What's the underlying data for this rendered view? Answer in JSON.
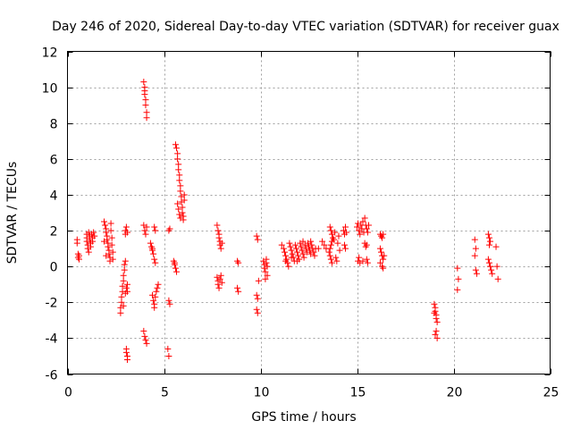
{
  "chart_data": {
    "type": "scatter",
    "title": "Day 246 of 2020, Sidereal Day-to-day VTEC variation (SDTVAR) for receiver guax",
    "xlabel": "GPS time / hours",
    "ylabel": "SDTVAR / TECUs",
    "xlim": [
      0,
      25
    ],
    "ylim": [
      -6,
      12
    ],
    "xticks": [
      0,
      5,
      10,
      15,
      20,
      25
    ],
    "yticks": [
      -6,
      -4,
      -2,
      0,
      2,
      4,
      6,
      8,
      10,
      12
    ],
    "grid": true,
    "marker": "+",
    "series": [
      {
        "name": "SDTVAR",
        "color": "#ff0000",
        "points": [
          [
            0.5,
            1.5
          ],
          [
            0.5,
            1.3
          ],
          [
            0.55,
            0.7
          ],
          [
            0.55,
            0.5
          ],
          [
            0.6,
            0.6
          ],
          [
            0.6,
            0.4
          ],
          [
            1.0,
            1.8
          ],
          [
            1.0,
            1.6
          ],
          [
            1.0,
            1.4
          ],
          [
            1.05,
            1.2
          ],
          [
            1.05,
            1.0
          ],
          [
            1.1,
            0.8
          ],
          [
            1.1,
            1.9
          ],
          [
            1.15,
            1.7
          ],
          [
            1.15,
            1.5
          ],
          [
            1.2,
            1.3
          ],
          [
            1.2,
            1.1
          ],
          [
            1.25,
            1.8
          ],
          [
            1.3,
            1.6
          ],
          [
            1.3,
            1.4
          ],
          [
            1.35,
            1.9
          ],
          [
            1.4,
            1.7
          ],
          [
            1.9,
            2.5
          ],
          [
            1.95,
            2.3
          ],
          [
            2.0,
            2.1
          ],
          [
            2.0,
            1.9
          ],
          [
            2.05,
            1.7
          ],
          [
            2.05,
            1.5
          ],
          [
            2.1,
            1.3
          ],
          [
            2.1,
            1.1
          ],
          [
            2.15,
            0.9
          ],
          [
            2.15,
            0.7
          ],
          [
            2.2,
            0.5
          ],
          [
            2.2,
            0.3
          ],
          [
            2.25,
            2.4
          ],
          [
            2.25,
            2.0
          ],
          [
            2.3,
            1.6
          ],
          [
            2.3,
            1.2
          ],
          [
            2.35,
            0.8
          ],
          [
            2.35,
            0.4
          ],
          [
            1.9,
            1.4
          ],
          [
            2.0,
            0.6
          ],
          [
            2.75,
            -2.6
          ],
          [
            2.75,
            -2.3
          ],
          [
            2.8,
            -2.0
          ],
          [
            2.8,
            -1.7
          ],
          [
            2.85,
            -1.4
          ],
          [
            2.85,
            -1.1
          ],
          [
            2.9,
            -0.8
          ],
          [
            2.9,
            -0.5
          ],
          [
            2.95,
            -0.2
          ],
          [
            2.95,
            0.1
          ],
          [
            3.0,
            0.3
          ],
          [
            2.9,
            -2.2
          ],
          [
            3.0,
            -1.5
          ],
          [
            3.05,
            -1.2
          ],
          [
            3.1,
            -1.4
          ],
          [
            3.1,
            -1.0
          ],
          [
            3.0,
            1.8
          ],
          [
            3.0,
            2.0
          ],
          [
            3.05,
            2.2
          ],
          [
            3.1,
            1.9
          ],
          [
            3.05,
            -4.6
          ],
          [
            3.05,
            -4.8
          ],
          [
            3.1,
            -5.0
          ],
          [
            3.1,
            -5.2
          ],
          [
            3.95,
            10.3
          ],
          [
            4.0,
            10.0
          ],
          [
            4.0,
            9.6
          ],
          [
            4.05,
            9.3
          ],
          [
            4.05,
            9.0
          ],
          [
            4.1,
            8.6
          ],
          [
            4.1,
            8.3
          ],
          [
            4.0,
            9.8
          ],
          [
            3.95,
            2.3
          ],
          [
            4.0,
            2.0
          ],
          [
            4.05,
            1.8
          ],
          [
            4.1,
            2.2
          ],
          [
            3.95,
            -3.6
          ],
          [
            4.0,
            -3.9
          ],
          [
            4.05,
            -4.1
          ],
          [
            4.1,
            -4.3
          ],
          [
            4.3,
            1.3
          ],
          [
            4.35,
            1.1
          ],
          [
            4.4,
            0.9
          ],
          [
            4.45,
            0.7
          ],
          [
            4.5,
            0.4
          ],
          [
            4.4,
            1.0
          ],
          [
            4.55,
            0.2
          ],
          [
            4.5,
            2.2
          ],
          [
            4.55,
            2.0
          ],
          [
            4.4,
            -1.6
          ],
          [
            4.45,
            -1.9
          ],
          [
            4.5,
            -2.1
          ],
          [
            4.5,
            -2.3
          ],
          [
            4.55,
            -1.7
          ],
          [
            4.6,
            -1.4
          ],
          [
            4.65,
            -1.2
          ],
          [
            4.7,
            -1.0
          ],
          [
            5.25,
            2.0
          ],
          [
            5.3,
            2.1
          ],
          [
            5.25,
            -1.9
          ],
          [
            5.3,
            -2.1
          ],
          [
            5.2,
            -4.6
          ],
          [
            5.25,
            -5.0
          ],
          [
            5.5,
            0.3
          ],
          [
            5.55,
            0.1
          ],
          [
            5.6,
            -0.1
          ],
          [
            5.65,
            -0.3
          ],
          [
            5.55,
            0.2
          ],
          [
            5.6,
            6.8
          ],
          [
            5.65,
            6.6
          ],
          [
            5.7,
            6.3
          ],
          [
            5.7,
            6.0
          ],
          [
            5.75,
            5.7
          ],
          [
            5.75,
            5.4
          ],
          [
            5.8,
            5.1
          ],
          [
            5.8,
            4.8
          ],
          [
            5.85,
            4.5
          ],
          [
            5.85,
            4.2
          ],
          [
            5.9,
            3.9
          ],
          [
            5.9,
            3.6
          ],
          [
            5.95,
            3.3
          ],
          [
            5.95,
            3.0
          ],
          [
            6.0,
            2.8
          ],
          [
            6.0,
            2.6
          ],
          [
            5.7,
            3.5
          ],
          [
            5.75,
            3.2
          ],
          [
            5.8,
            2.9
          ],
          [
            5.85,
            2.7
          ],
          [
            6.05,
            4.0
          ],
          [
            6.05,
            3.7
          ],
          [
            7.75,
            2.3
          ],
          [
            7.8,
            2.0
          ],
          [
            7.85,
            1.8
          ],
          [
            7.85,
            1.6
          ],
          [
            7.9,
            1.4
          ],
          [
            7.9,
            1.2
          ],
          [
            7.95,
            1.0
          ],
          [
            8.0,
            1.3
          ],
          [
            7.75,
            -0.6
          ],
          [
            7.8,
            -0.8
          ],
          [
            7.8,
            -1.0
          ],
          [
            7.85,
            -1.2
          ],
          [
            7.9,
            -0.7
          ],
          [
            7.95,
            -0.5
          ],
          [
            8.0,
            -0.9
          ],
          [
            8.8,
            0.3
          ],
          [
            8.85,
            0.2
          ],
          [
            8.8,
            -1.2
          ],
          [
            8.85,
            -1.4
          ],
          [
            9.8,
            1.7
          ],
          [
            9.85,
            1.5
          ],
          [
            9.8,
            -1.6
          ],
          [
            9.85,
            -1.8
          ],
          [
            9.8,
            -2.4
          ],
          [
            9.85,
            -2.6
          ],
          [
            9.9,
            -0.8
          ],
          [
            10.15,
            0.3
          ],
          [
            10.2,
            0.1
          ],
          [
            10.2,
            -0.1
          ],
          [
            10.25,
            -0.3
          ],
          [
            10.3,
            0.4
          ],
          [
            10.3,
            0.2
          ],
          [
            10.35,
            0.0
          ],
          [
            10.35,
            -0.5
          ],
          [
            10.25,
            -0.7
          ],
          [
            11.1,
            1.2
          ],
          [
            11.2,
            1.0
          ],
          [
            11.25,
            0.8
          ],
          [
            11.3,
            0.6
          ],
          [
            11.35,
            0.4
          ],
          [
            11.4,
            0.2
          ],
          [
            11.45,
            0.0
          ],
          [
            11.5,
            1.3
          ],
          [
            11.55,
            1.1
          ],
          [
            11.6,
            0.9
          ],
          [
            11.65,
            0.7
          ],
          [
            11.7,
            0.5
          ],
          [
            11.75,
            0.3
          ],
          [
            11.8,
            1.2
          ],
          [
            11.85,
            1.0
          ],
          [
            11.9,
            0.8
          ],
          [
            11.95,
            0.6
          ],
          [
            12.0,
            0.4
          ],
          [
            12.05,
            1.3
          ],
          [
            12.1,
            1.1
          ],
          [
            12.15,
            0.9
          ],
          [
            12.2,
            0.7
          ],
          [
            12.25,
            0.5
          ],
          [
            12.3,
            1.2
          ],
          [
            12.35,
            1.0
          ],
          [
            12.4,
            0.8
          ],
          [
            12.45,
            1.3
          ],
          [
            12.5,
            1.1
          ],
          [
            12.55,
            0.9
          ],
          [
            12.6,
            0.7
          ],
          [
            12.65,
            1.2
          ],
          [
            12.7,
            1.0
          ],
          [
            12.75,
            0.8
          ],
          [
            12.8,
            0.6
          ],
          [
            12.85,
            1.0
          ],
          [
            13.0,
            1.0
          ],
          [
            13.2,
            1.4
          ],
          [
            13.3,
            1.2
          ],
          [
            13.4,
            1.0
          ],
          [
            11.3,
            0.3
          ],
          [
            11.6,
            0.5
          ],
          [
            11.9,
            0.3
          ],
          [
            12.2,
            1.4
          ],
          [
            12.6,
            1.4
          ],
          [
            13.6,
            2.2
          ],
          [
            13.65,
            2.0
          ],
          [
            13.7,
            1.8
          ],
          [
            13.75,
            1.6
          ],
          [
            13.7,
            1.4
          ],
          [
            13.65,
            1.2
          ],
          [
            13.6,
            1.0
          ],
          [
            13.55,
            0.8
          ],
          [
            13.6,
            0.6
          ],
          [
            13.65,
            0.4
          ],
          [
            13.7,
            0.2
          ],
          [
            13.8,
            1.5
          ],
          [
            13.85,
            1.9
          ],
          [
            13.9,
            0.5
          ],
          [
            13.95,
            0.3
          ],
          [
            14.0,
            1.3
          ],
          [
            14.05,
            1.7
          ],
          [
            14.1,
            0.9
          ],
          [
            14.3,
            2.0
          ],
          [
            14.35,
            1.8
          ],
          [
            14.4,
            2.2
          ],
          [
            14.45,
            1.9
          ],
          [
            14.35,
            1.2
          ],
          [
            14.4,
            1.0
          ],
          [
            15.0,
            2.2
          ],
          [
            15.05,
            2.4
          ],
          [
            15.1,
            2.0
          ],
          [
            15.15,
            1.8
          ],
          [
            15.2,
            2.3
          ],
          [
            15.25,
            2.1
          ],
          [
            15.3,
            2.5
          ],
          [
            15.35,
            1.9
          ],
          [
            15.4,
            2.7
          ],
          [
            15.45,
            2.3
          ],
          [
            15.5,
            2.1
          ],
          [
            15.55,
            1.9
          ],
          [
            15.6,
            2.3
          ],
          [
            15.05,
            0.3
          ],
          [
            15.1,
            0.5
          ],
          [
            15.15,
            0.2
          ],
          [
            15.3,
            0.3
          ],
          [
            15.5,
            0.4
          ],
          [
            15.55,
            0.2
          ],
          [
            15.4,
            1.3
          ],
          [
            15.45,
            1.1
          ],
          [
            15.5,
            1.2
          ],
          [
            16.2,
            1.8
          ],
          [
            16.25,
            1.7
          ],
          [
            16.3,
            1.6
          ],
          [
            16.35,
            1.8
          ],
          [
            16.2,
            1.0
          ],
          [
            16.25,
            0.8
          ],
          [
            16.3,
            0.6
          ],
          [
            16.35,
            0.4
          ],
          [
            16.2,
            0.2
          ],
          [
            16.3,
            0.0
          ],
          [
            16.4,
            0.6
          ],
          [
            16.35,
            -0.1
          ],
          [
            19.0,
            -2.1
          ],
          [
            19.05,
            -2.3
          ],
          [
            19.05,
            -2.5
          ],
          [
            19.1,
            -2.7
          ],
          [
            19.1,
            -2.9
          ],
          [
            19.15,
            -3.1
          ],
          [
            19.0,
            -2.6
          ],
          [
            19.05,
            -3.8
          ],
          [
            19.1,
            -3.6
          ],
          [
            19.15,
            -4.0
          ],
          [
            20.2,
            -0.1
          ],
          [
            20.25,
            -0.7
          ],
          [
            20.2,
            -1.3
          ],
          [
            21.1,
            1.5
          ],
          [
            21.15,
            1.0
          ],
          [
            21.1,
            0.6
          ],
          [
            21.15,
            -0.2
          ],
          [
            21.2,
            -0.4
          ],
          [
            21.8,
            1.8
          ],
          [
            21.85,
            1.6
          ],
          [
            21.9,
            1.4
          ],
          [
            21.85,
            1.2
          ],
          [
            21.8,
            0.4
          ],
          [
            21.85,
            0.2
          ],
          [
            21.9,
            0.0
          ],
          [
            21.95,
            -0.2
          ],
          [
            22.0,
            -0.4
          ],
          [
            22.2,
            1.1
          ],
          [
            22.25,
            0.0
          ],
          [
            22.3,
            -0.7
          ]
        ]
      }
    ]
  }
}
